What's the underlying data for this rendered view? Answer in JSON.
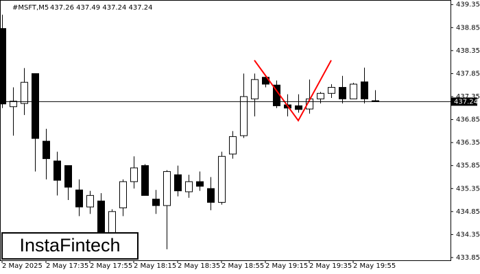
{
  "chart_data": {
    "type": "candlestick",
    "title": "#MSFT,M5",
    "ohlc_header": "437.26 437.49 437.24 437.24",
    "categories": [
      "2 May 2025",
      null,
      null,
      null,
      "2 May 17:35",
      null,
      null,
      null,
      "2 May 17:55",
      null,
      null,
      null,
      "2 May 18:15",
      null,
      null,
      null,
      "2 May 18:35",
      null,
      null,
      null,
      "2 May 18:55",
      null,
      null,
      null,
      "2 May 19:15",
      null,
      null,
      null,
      "2 May 19:35",
      null,
      null,
      null,
      "2 May 19:55",
      null,
      null
    ],
    "open": [
      438.83,
      437.13,
      437.2,
      437.85,
      436.38,
      435.95,
      435.85,
      435.32,
      434.95,
      435.08,
      434.25,
      434.93,
      435.5,
      435.85,
      435.12,
      434.98,
      435.65,
      435.28,
      435.5,
      435.35,
      435.05,
      436.1,
      436.5,
      437.3,
      437.77,
      437.6,
      437.17,
      437.15,
      437.08,
      437.3,
      437.42,
      437.55,
      437.3,
      437.67,
      437.26
    ],
    "high": [
      439.13,
      437.55,
      437.97,
      437.85,
      436.65,
      436.15,
      435.85,
      435.55,
      435.3,
      435.25,
      434.9,
      435.55,
      436.05,
      435.88,
      435.32,
      435.75,
      435.85,
      435.65,
      435.72,
      435.6,
      436.15,
      436.6,
      437.85,
      437.85,
      437.82,
      437.7,
      437.4,
      437.4,
      437.72,
      437.45,
      437.62,
      437.8,
      437.65,
      437.98,
      437.49
    ],
    "low": [
      437.1,
      436.5,
      436.95,
      435.72,
      435.55,
      435.2,
      435.1,
      434.75,
      434.8,
      433.95,
      433.95,
      434.75,
      435.35,
      435.2,
      434.8,
      434.03,
      435.18,
      435.15,
      435.3,
      434.88,
      435.0,
      436.0,
      436.45,
      436.92,
      437.55,
      437.1,
      436.92,
      437.0,
      436.98,
      437.2,
      437.32,
      437.2,
      437.3,
      437.2,
      437.24
    ],
    "close": [
      437.19,
      437.25,
      437.66,
      436.44,
      436.0,
      435.53,
      435.38,
      434.95,
      435.2,
      434.05,
      434.85,
      435.5,
      435.8,
      435.2,
      434.98,
      435.72,
      435.3,
      435.5,
      435.4,
      435.05,
      436.05,
      436.48,
      437.35,
      437.72,
      437.62,
      437.15,
      437.1,
      437.07,
      437.3,
      437.42,
      437.55,
      437.3,
      437.62,
      437.3,
      437.24
    ],
    "ylim": [
      433.79,
      439.45
    ],
    "yticks": [
      {
        "value": 439.35,
        "label": "439.35"
      },
      {
        "value": 438.85,
        "label": "438.85"
      },
      {
        "value": 438.35,
        "label": "438.35"
      },
      {
        "value": 437.85,
        "label": "437.85"
      },
      {
        "value": 437.35,
        "label": "437.35"
      },
      {
        "value": 436.85,
        "label": "436.85"
      },
      {
        "value": 436.35,
        "label": "436.35"
      },
      {
        "value": 435.85,
        "label": "435.85"
      },
      {
        "value": 435.35,
        "label": "435.35"
      },
      {
        "value": 434.85,
        "label": "434.85"
      },
      {
        "value": 434.35,
        "label": "434.35"
      },
      {
        "value": 433.85,
        "label": "433.85"
      }
    ],
    "last_price": 437.24,
    "up_color": "#ffffff",
    "down_color": "#000000",
    "logo": "InstaFintech"
  }
}
